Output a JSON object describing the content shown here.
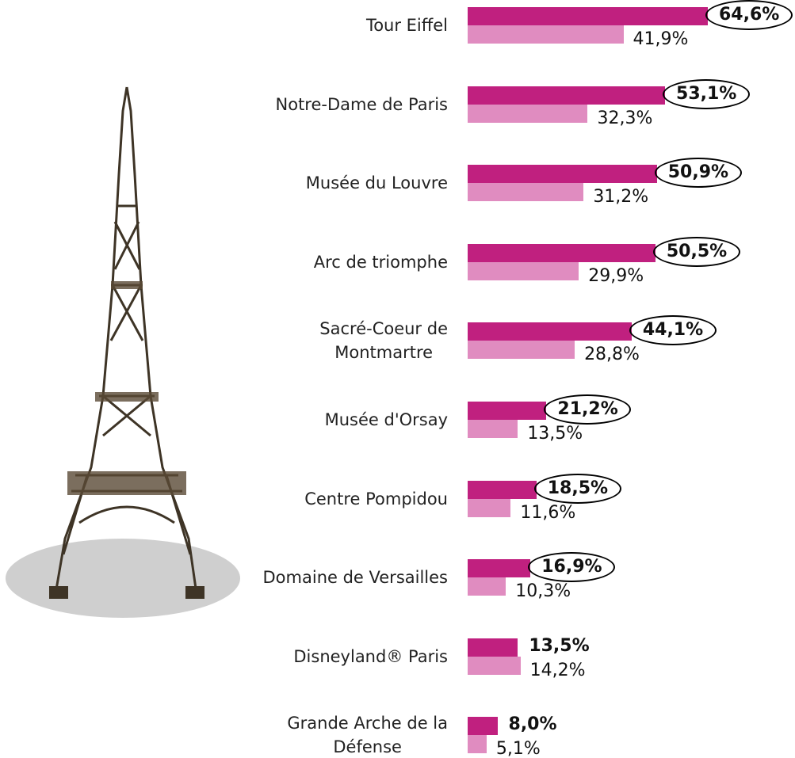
{
  "chart_data": {
    "type": "bar",
    "orientation": "horizontal",
    "categories": [
      "Tour Eiffel",
      "Notre-Dame de Paris",
      "Musée du Louvre",
      "Arc de triomphe",
      "Sacré-Coeur de\nMontmartre",
      "Musée d'Orsay",
      "Centre Pompidou",
      "Domaine de Versailles",
      "Disneyland® Paris",
      "Grande Arche de la\nDéfense"
    ],
    "series": [
      {
        "color": "#c0207f",
        "values": [
          64.6,
          53.1,
          50.9,
          50.5,
          44.1,
          21.2,
          18.5,
          16.9,
          13.5,
          8.0
        ],
        "value_labels": [
          "64,6%",
          "53,1%",
          "50,9%",
          "50,5%",
          "44,1%",
          "21,2%",
          "18,5%",
          "16,9%",
          "13,5%",
          "8,0%"
        ]
      },
      {
        "color": "#e08cc0",
        "values": [
          41.9,
          32.3,
          31.2,
          29.9,
          28.8,
          13.5,
          11.6,
          10.3,
          14.2,
          5.1
        ],
        "value_labels": [
          "41,9%",
          "32,3%",
          "31,2%",
          "29,9%",
          "28,8%",
          "13,5%",
          "11,6%",
          "10,3%",
          "14,2%",
          "5,1%"
        ]
      }
    ],
    "circled": [
      true,
      true,
      true,
      true,
      true,
      true,
      true,
      true,
      false,
      false
    ]
  }
}
